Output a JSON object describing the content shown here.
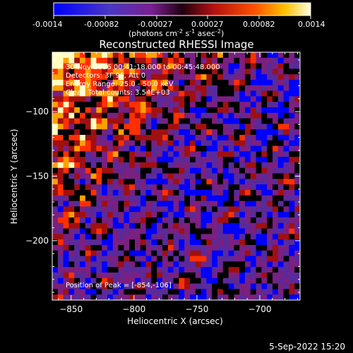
{
  "colorbar": {
    "ticks": [
      "-0.0014",
      "-0.00082",
      "-0.00027",
      "0.00027",
      "0.00082",
      "0.0014"
    ],
    "unit_text": "(photons cm",
    "unit_exp1": "-2",
    "unit_mid": " s",
    "unit_exp2": "-1",
    "unit_end": " asec",
    "unit_exp3": "-2",
    "unit_close": ")"
  },
  "chart_data": {
    "type": "heatmap",
    "title": "Reconstructed RHESSI Image",
    "xlabel": "Heliocentric X (arcsec)",
    "ylabel": "Heliocentric Y (arcsec)",
    "xlim": [
      -865,
      -668
    ],
    "ylim": [
      -246,
      -54
    ],
    "xticks": [
      -850,
      -800,
      -750,
      -700
    ],
    "yticks": [
      -100,
      -150,
      -200
    ],
    "xtick_labels": [
      "−850",
      "−800",
      "−750",
      "−700"
    ],
    "ytick_labels": [
      "−100",
      "−150",
      "−200"
    ],
    "color_range": [
      -0.0014,
      0.0014
    ],
    "peak": [
      -854,
      -106
    ],
    "grid": false,
    "colormap": [
      "#0000ff",
      "#5a2a9a",
      "#7a2080",
      "#000000",
      "#a01010",
      "#ff3000",
      "#ffa000",
      "#ffffc0"
    ],
    "annotations": [
      "30-Nov-2016 00:41:18.000 to 00:45:48.000",
      "Detectors: 3F 9F, Att 0",
      "Energy Range: 25.0 - 50.0 keV",
      "Clean    Total counts: 3.54E+03",
      "Position of Peak = [-854,-106]"
    ]
  },
  "footer": {
    "timestamp": "5-Sep-2022 15:20"
  }
}
